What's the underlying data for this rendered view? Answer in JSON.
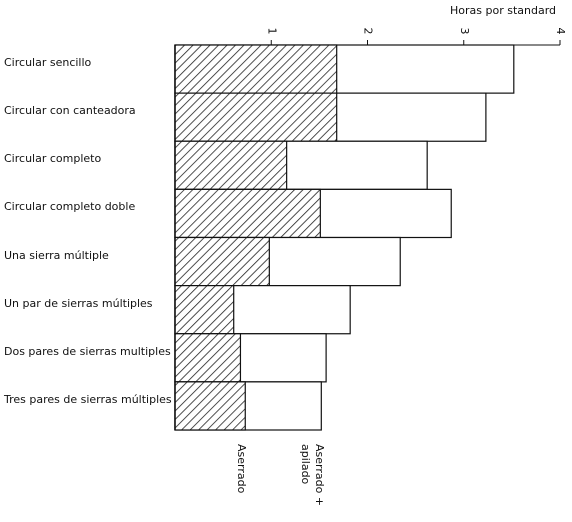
{
  "chart_data": {
    "type": "bar",
    "orientation": "horizontal",
    "overlay": true,
    "xlabel": "Horas por standard",
    "categories": [
      "Circular sencillo",
      "Circular con canteadora",
      "Circular completo",
      "Circular completo doble",
      "Una sierra múltiple",
      "Un par de sierras múltiples",
      "Dos pares de sierras multiples",
      "Tres pares de sierras múltiples"
    ],
    "series": [
      {
        "name": "Aserrado + apilado",
        "color": "#ffffff",
        "values": [
          3.52,
          3.23,
          2.62,
          2.87,
          2.34,
          1.82,
          1.57,
          1.52
        ]
      },
      {
        "name": "Aserrado",
        "color": "hatch",
        "values": [
          1.68,
          1.68,
          1.16,
          1.51,
          0.98,
          0.61,
          0.68,
          0.73
        ]
      }
    ],
    "xlim": [
      0,
      4
    ],
    "xticks": [
      1,
      2,
      3,
      4
    ]
  }
}
